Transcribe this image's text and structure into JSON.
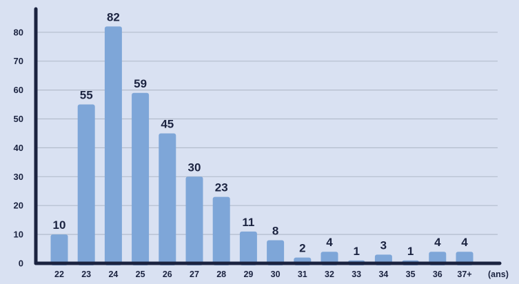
{
  "colors": {
    "background": "#d9e1f2",
    "bar": "#7ea6d8",
    "axis": "#1b2340",
    "grid": "#b3bccc",
    "text": "#1b2340"
  },
  "chart_data": {
    "type": "bar",
    "title": "",
    "xlabel": "",
    "ylabel": "",
    "x_unit": "(ans)",
    "categories": [
      "22",
      "23",
      "24",
      "25",
      "26",
      "27",
      "28",
      "29",
      "30",
      "31",
      "32",
      "33",
      "34",
      "35",
      "36",
      "37+"
    ],
    "values": [
      10,
      55,
      82,
      59,
      45,
      30,
      23,
      11,
      8,
      2,
      4,
      1,
      3,
      1,
      4,
      4
    ],
    "value_labels": [
      "10",
      "55",
      "82",
      "59",
      "45",
      "30",
      "23",
      "11",
      "8",
      "2",
      "4",
      "1",
      "3",
      "1",
      "4",
      "4"
    ],
    "yticks": [
      0,
      10,
      20,
      30,
      40,
      50,
      60,
      70,
      80
    ],
    "ytick_labels": [
      "0",
      "10",
      "20",
      "30",
      "40",
      "50",
      "60",
      "70",
      "80"
    ],
    "ylim": [
      0,
      82
    ],
    "grid": true,
    "legend": "none"
  }
}
